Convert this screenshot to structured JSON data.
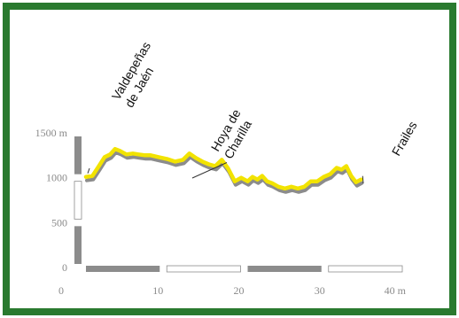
{
  "chart_data": {
    "type": "line",
    "x_unit": "km",
    "y_unit": "m",
    "x": [
      0,
      0.8,
      1.6,
      2.3,
      3.0,
      3.6,
      4.2,
      5.0,
      5.8,
      6.5,
      7.3,
      8.0,
      9.0,
      10.0,
      11.0,
      12.0,
      12.8,
      13.6,
      14.4,
      15.2,
      16.0,
      16.8,
      17.6,
      18.4,
      19.2,
      20.0,
      20.6,
      21.2,
      21.8,
      22.4,
      23.0,
      23.8,
      24.6,
      25.4,
      26.2,
      27.0,
      27.8,
      28.6,
      29.4,
      30.2,
      31.0,
      31.6,
      32.2,
      32.8,
      33.4,
      34.0
    ],
    "y": [
      1010,
      1020,
      1130,
      1230,
      1260,
      1320,
      1300,
      1260,
      1270,
      1260,
      1250,
      1250,
      1230,
      1210,
      1180,
      1200,
      1270,
      1220,
      1180,
      1150,
      1130,
      1200,
      1100,
      960,
      1000,
      960,
      1010,
      980,
      1020,
      960,
      940,
      900,
      880,
      900,
      880,
      900,
      960,
      960,
      1010,
      1040,
      1110,
      1090,
      1130,
      1020,
      950,
      980
    ],
    "x_ticks": [
      {
        "value": 0,
        "label": "0"
      },
      {
        "value": 10,
        "label": "10"
      },
      {
        "value": 20,
        "label": "20"
      },
      {
        "value": 30,
        "label": "30"
      },
      {
        "value": 40,
        "label": "40 m"
      }
    ],
    "y_ticks": [
      {
        "value": 0,
        "label": "0"
      },
      {
        "value": 500,
        "label": "500"
      },
      {
        "value": 1000,
        "label": "1000"
      },
      {
        "value": 1500,
        "label": "1500 m"
      }
    ],
    "xlim": [
      0,
      40
    ],
    "ylim": [
      0,
      1500
    ],
    "annotations": [
      {
        "lines": [
          "Valdepeñas",
          "de Jaén"
        ],
        "x": 0,
        "y": 1010
      },
      {
        "lines": [
          "Hoya de",
          "Charilla"
        ],
        "x": 17.2,
        "y": 1130
      },
      {
        "lines": [
          "Frailes"
        ],
        "x": 34.0,
        "y": 980
      }
    ],
    "line_color": "#f2e300",
    "shadow_color": "#8c8c8c"
  },
  "colors": {
    "border": "#2a7a2f",
    "scale_dark": "#8c8c8c",
    "scale_light": "#ffffff"
  }
}
